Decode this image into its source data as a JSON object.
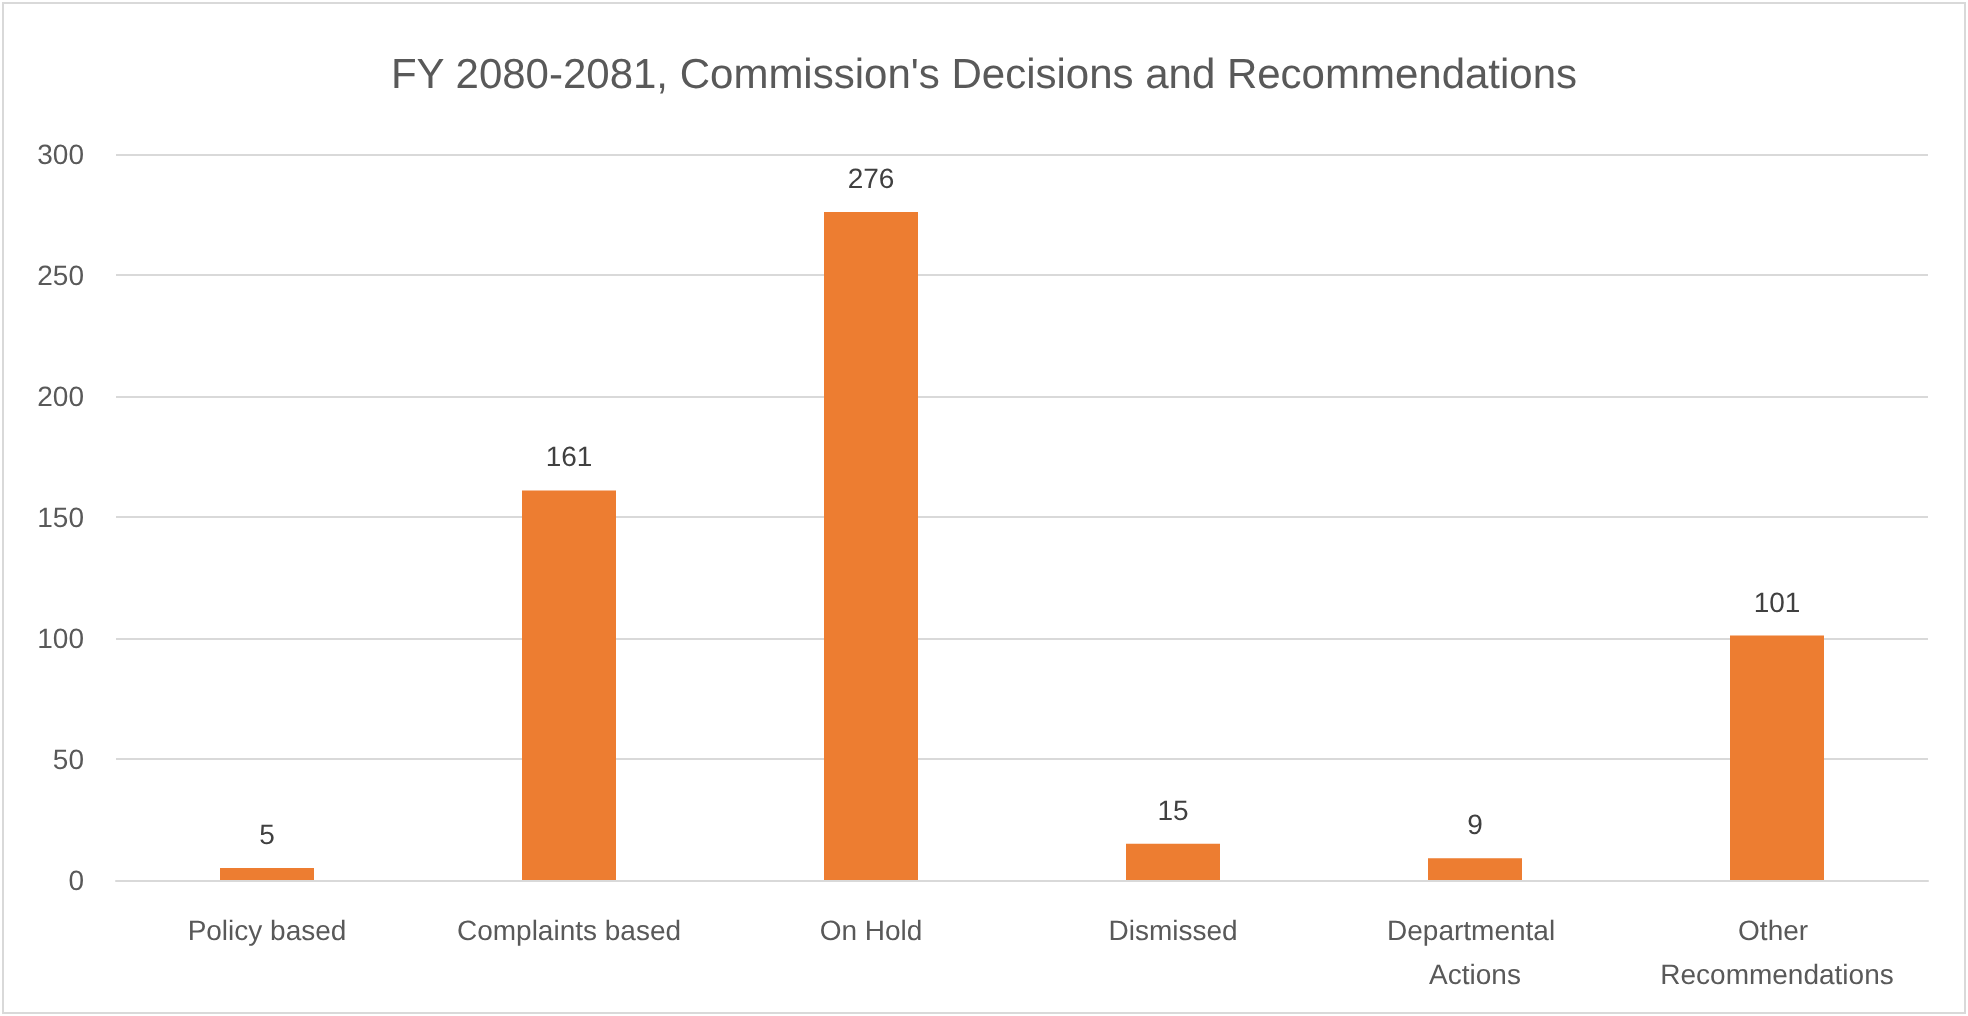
{
  "chart_data": {
    "type": "bar",
    "title": "FY 2080-2081, Commission's Decisions and Recommendations",
    "categories": [
      "Policy based",
      "Complaints based",
      "On Hold",
      "Dismissed",
      "Departmental Actions",
      "Other Recommendations"
    ],
    "values": [
      5,
      161,
      276,
      15,
      9,
      101
    ],
    "color": "#ed7d31",
    "ylim": [
      0,
      300
    ],
    "yticks": [
      0,
      50,
      100,
      150,
      200,
      250,
      300
    ],
    "grid": "y",
    "data_labels": true
  }
}
